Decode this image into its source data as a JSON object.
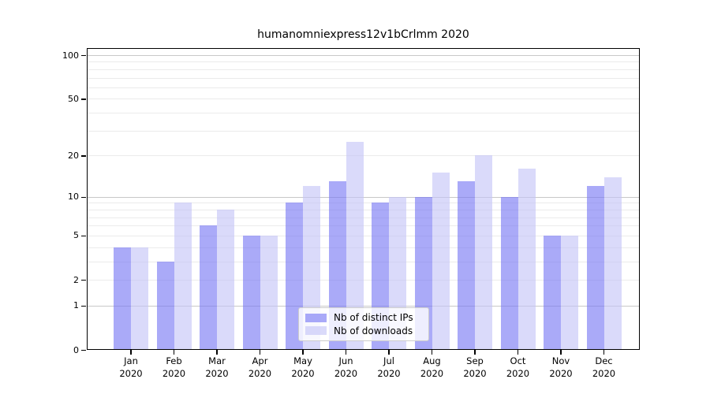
{
  "chart_data": {
    "type": "bar",
    "title": "humanomniexpress12v1bCrlmm 2020",
    "categories": [
      "Jan",
      "Feb",
      "Mar",
      "Apr",
      "May",
      "Jun",
      "Jul",
      "Aug",
      "Sep",
      "Oct",
      "Nov",
      "Dec"
    ],
    "x_year": "2020",
    "series": [
      {
        "name": "Nb of distinct IPs",
        "key": "distinct-ips",
        "color": "rgba(118,118,244,0.62)",
        "values": [
          4,
          3,
          6,
          5,
          9,
          13,
          9,
          10,
          13,
          10,
          5,
          12
        ]
      },
      {
        "name": "Nb of downloads",
        "key": "downloads",
        "color": "rgba(195,195,247,0.62)",
        "values": [
          4,
          9,
          8,
          5,
          12,
          25,
          10,
          15,
          20,
          16,
          5,
          14
        ]
      }
    ],
    "yscale": "log1p",
    "ylim": [
      0,
      100
    ],
    "yticks": [
      100,
      50,
      20,
      10,
      5,
      2,
      1,
      0
    ],
    "major_gridlines": [
      1,
      10,
      100
    ],
    "minor_gridlines": [
      2,
      3,
      4,
      5,
      6,
      7,
      8,
      9,
      20,
      30,
      40,
      50,
      60,
      70,
      80,
      90
    ],
    "grid": true,
    "legend_position": "lower center inside"
  },
  "colors": {
    "background": "#ffffff",
    "spine": "#000000",
    "major_grid": "#c8c8c8",
    "minor_grid": "#ebebeb",
    "text": "#000000"
  }
}
